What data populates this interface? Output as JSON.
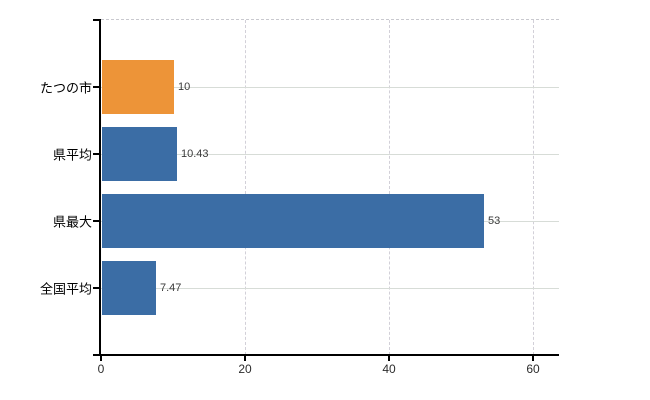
{
  "chart_data": {
    "type": "bar",
    "orientation": "horizontal",
    "title": "",
    "xlabel": "",
    "ylabel": "",
    "categories": [
      "たつの市",
      "県平均",
      "県最大",
      "全国平均"
    ],
    "values": [
      10,
      10.43,
      53,
      7.47
    ],
    "value_labels": [
      "10",
      "10.43",
      "53",
      "7.47"
    ],
    "bar_colors": [
      "#ED9438",
      "#3B6DA5",
      "#3B6DA5",
      "#3B6DA5"
    ],
    "xticks": [
      0,
      20,
      40,
      60
    ],
    "xtick_labels": [
      "0",
      "20",
      "40",
      "60"
    ],
    "xlim": [
      0,
      63.6
    ],
    "grid": {
      "horizontal_style": "solid",
      "horizontal_color": "#d7dcd7",
      "vertical_style": "dashed",
      "vertical_color": "#d2d0d8",
      "top_border_style": "dashed"
    },
    "axis_color": "#000000",
    "background": "#ffffff",
    "legend": "none"
  }
}
